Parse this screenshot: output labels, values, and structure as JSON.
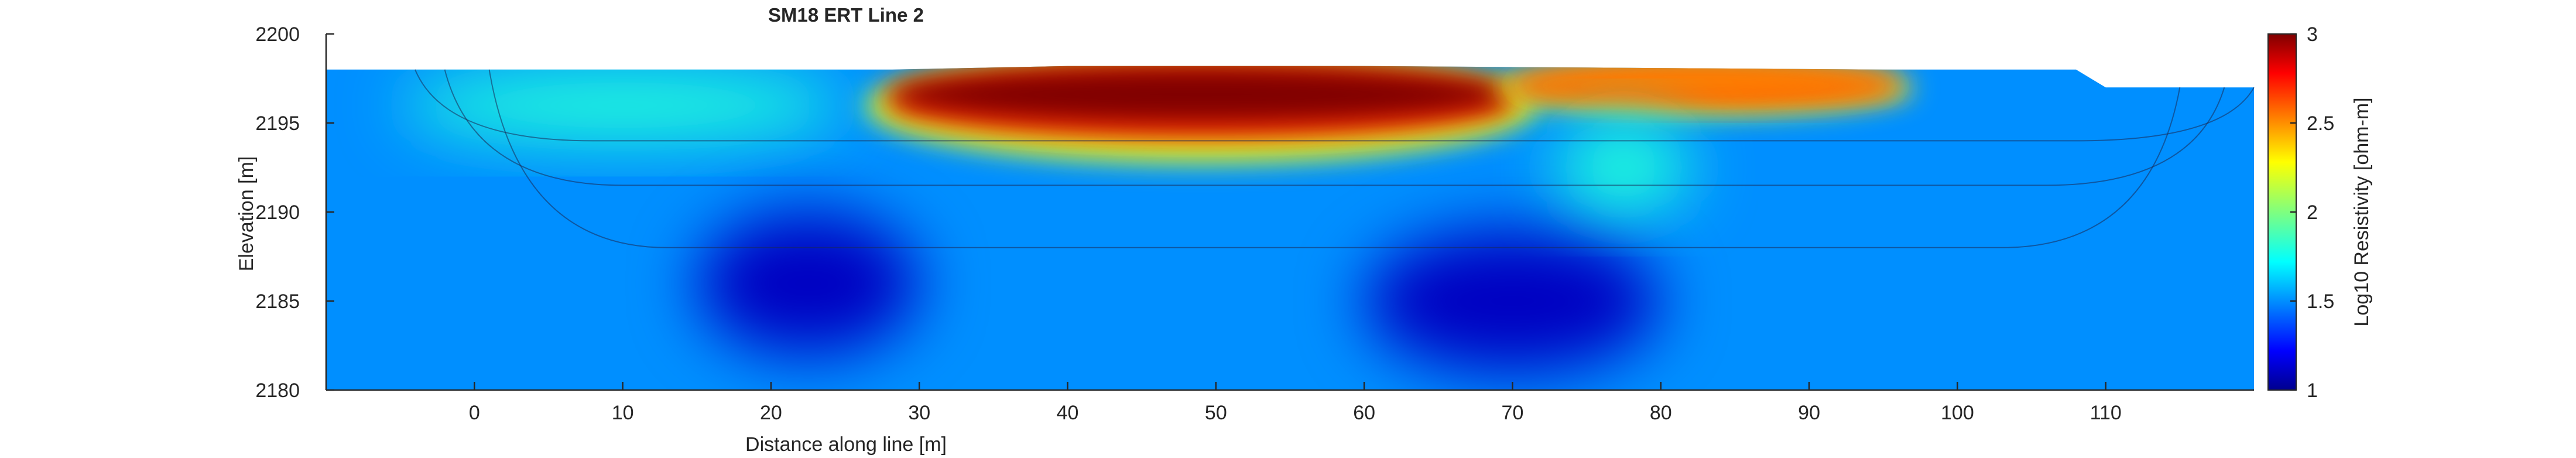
{
  "chart_data": {
    "type": "heatmap",
    "title": "SM18 ERT Line 2",
    "xlabel": "Distance along line [m]",
    "ylabel": "Elevation [m]",
    "xlim": [
      -10,
      120
    ],
    "ylim": [
      2180,
      2200
    ],
    "xticks": [
      0,
      10,
      20,
      30,
      40,
      50,
      60,
      70,
      80,
      90,
      100,
      110
    ],
    "yticks": [
      2180,
      2185,
      2190,
      2195,
      2200
    ],
    "colorbar": {
      "label": "Log10 Resistivity [ohm-m]",
      "limits": [
        1,
        3
      ],
      "ticks": [
        1,
        1.5,
        2,
        2.5,
        3
      ],
      "colormap": "jet"
    },
    "grid": false,
    "profile": {
      "surface": [
        [
          -10,
          2198
        ],
        [
          28,
          2198
        ],
        [
          40,
          2198.2
        ],
        [
          60,
          2198.2
        ],
        [
          95,
          2198
        ],
        [
          108,
          2198
        ],
        [
          110,
          2197
        ],
        [
          120,
          2197
        ]
      ],
      "background_log10": 1.5,
      "anomalies": [
        {
          "x": [
            28,
            70
          ],
          "y": [
            2195,
            2198.2
          ],
          "log10": 3.0,
          "description_value": "high resistivity"
        },
        {
          "x": [
            70,
            96
          ],
          "y": [
            2196.5,
            2198
          ],
          "log10": 2.5
        },
        {
          "x": [
            -5,
            25
          ],
          "y": [
            2194,
            2198
          ],
          "log10": 1.8
        },
        {
          "x": [
            15,
            30
          ],
          "y": [
            2182,
            2190
          ],
          "log10": 1.1
        },
        {
          "x": [
            60,
            80
          ],
          "y": [
            2181,
            2189
          ],
          "log10": 1.1
        },
        {
          "x": [
            73,
            82
          ],
          "y": [
            2190,
            2195
          ],
          "log10": 1.8
        }
      ]
    }
  }
}
